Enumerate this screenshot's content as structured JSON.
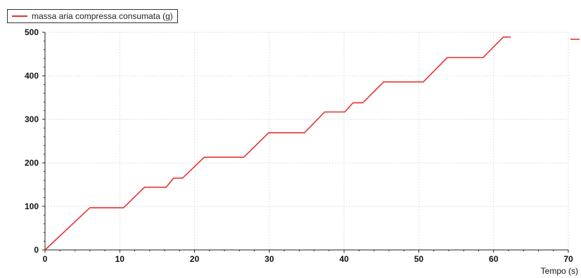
{
  "chart_data": {
    "type": "line",
    "xlabel": "Tempo (s)",
    "ylabel": "",
    "xlim": [
      0,
      70
    ],
    "ylim": [
      0,
      500
    ],
    "xticks": [
      0,
      10,
      20,
      30,
      40,
      50,
      60,
      70
    ],
    "yticks": [
      0,
      100,
      200,
      300,
      400,
      500
    ],
    "grid": true,
    "legend": "top-left",
    "series": [
      {
        "name": "massa aria compressa consumata (g)",
        "color": "#e8302e",
        "x": [
          0,
          6,
          10.5,
          13.3,
          16.2,
          17.2,
          18.4,
          21.3,
          26.6,
          29.9,
          34.7,
          37.4,
          40.1,
          41.2,
          42.5,
          45.3,
          50.6,
          53.8,
          58.6,
          61.3,
          62.3
        ],
        "y": [
          0,
          97,
          97,
          144,
          144,
          165,
          165,
          213,
          213,
          269,
          269,
          317,
          317,
          338,
          338,
          386,
          386,
          442,
          442,
          489,
          489
        ]
      }
    ],
    "offscale_marker_y": 484
  }
}
